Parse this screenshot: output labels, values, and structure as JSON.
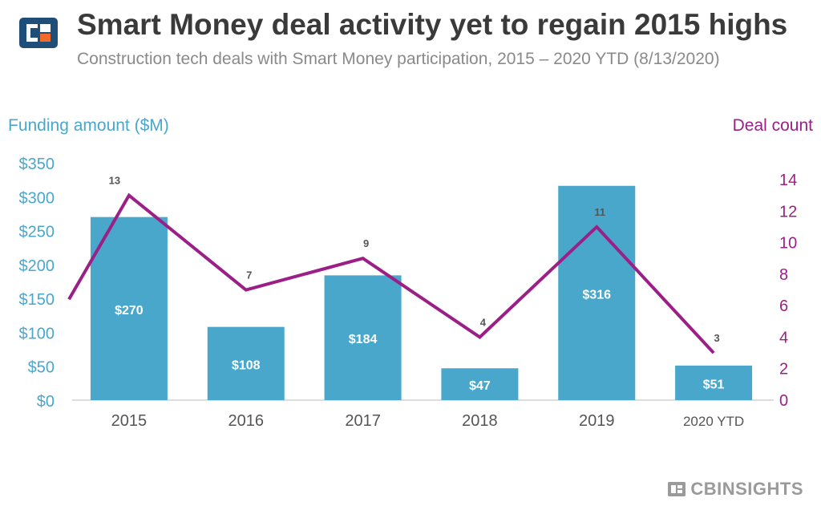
{
  "header": {
    "title": "Smart Money deal activity yet to regain 2015 highs",
    "subtitle": "Construction tech deals with Smart Money participation, 2015 – 2020 YTD (8/13/2020)"
  },
  "footer": {
    "brand": "CBINSIGHTS"
  },
  "colors": {
    "bar": "#4aa7cc",
    "line": "#9b1f87",
    "left_axis": "#4aa7cc",
    "right_axis": "#9b1f87",
    "text": "#3a3a3a"
  },
  "chart_data": {
    "type": "bar",
    "categories": [
      "2015",
      "2016",
      "2017",
      "2018",
      "2019",
      "2020 YTD"
    ],
    "series": [
      {
        "name": "Funding amount ($M)",
        "type": "bar",
        "axis": "left",
        "values": [
          270,
          108,
          184,
          47,
          316,
          51
        ],
        "labels": [
          "$270",
          "$108",
          "$184",
          "$47",
          "$316",
          "$51"
        ]
      },
      {
        "name": "Deal count",
        "type": "line",
        "axis": "right",
        "values": [
          13,
          7,
          9,
          4,
          11,
          3
        ],
        "labels": [
          "13",
          "7",
          "9",
          "4",
          "11",
          "3"
        ]
      }
    ],
    "y_left": {
      "label": "Funding amount ($M)",
      "ylim": [
        0,
        350
      ],
      "ticks": [
        0,
        50,
        100,
        150,
        200,
        250,
        300,
        350
      ],
      "tick_labels": [
        "$0",
        "$50",
        "$100",
        "$150",
        "$200",
        "$250",
        "$300",
        "$350"
      ]
    },
    "y_right": {
      "label": "Deal count",
      "ylim": [
        0,
        14
      ],
      "ticks": [
        0,
        2,
        4,
        6,
        8,
        10,
        12,
        14
      ],
      "tick_labels": [
        "0",
        "2",
        "4",
        "6",
        "8",
        "10",
        "12",
        "14"
      ]
    },
    "grid": false,
    "legend": "none"
  }
}
